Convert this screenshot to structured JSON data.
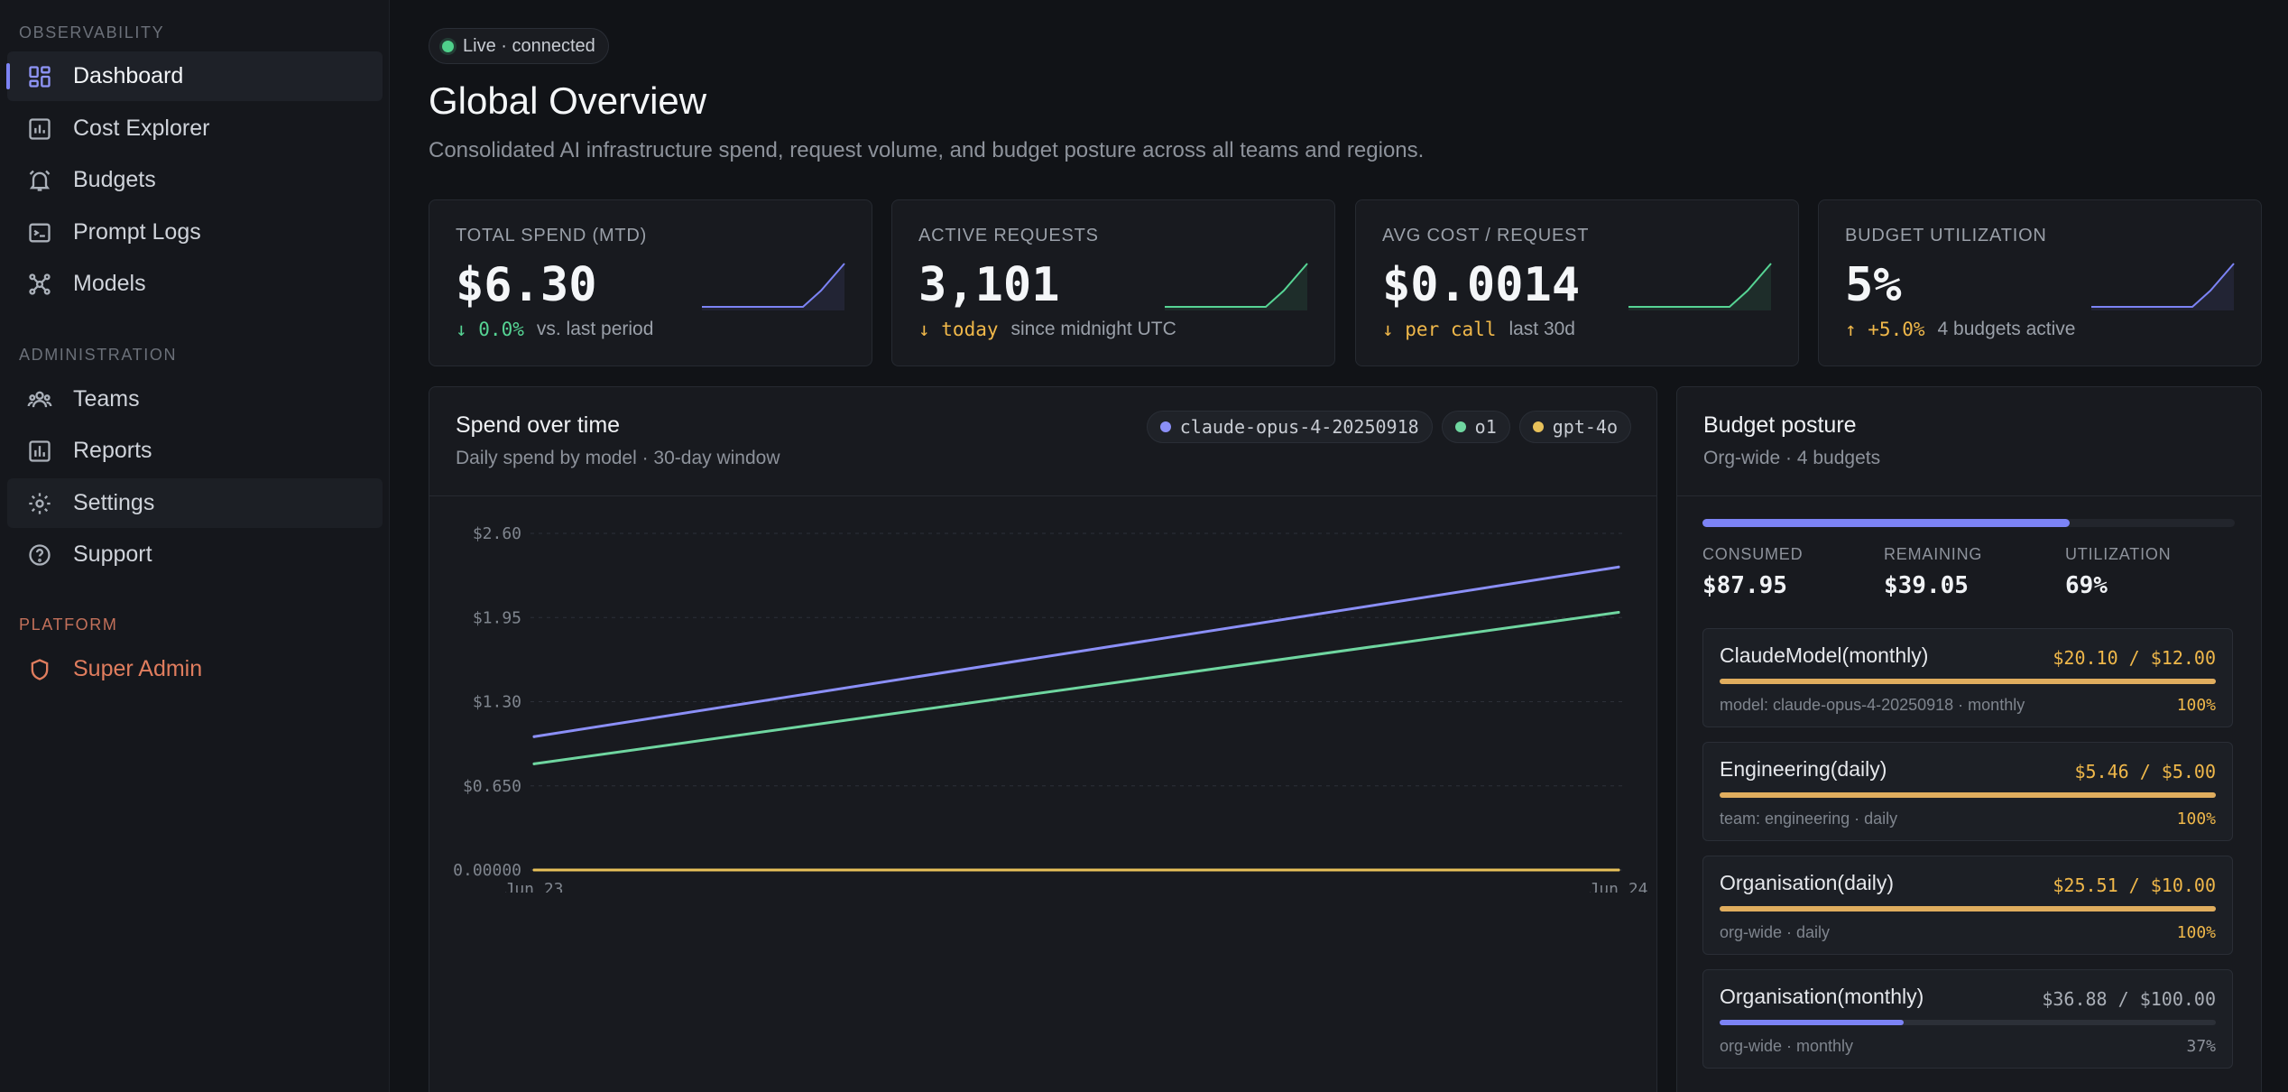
{
  "sidebar": {
    "sections": [
      {
        "label": "OBSERVABILITY"
      },
      {
        "label": "ADMINISTRATION"
      },
      {
        "label": "PLATFORM"
      }
    ],
    "items": [
      {
        "label": "Dashboard",
        "icon": "grid-icon",
        "active": true
      },
      {
        "label": "Cost Explorer",
        "icon": "bar-chart-icon"
      },
      {
        "label": "Budgets",
        "icon": "bell-alarm-icon"
      },
      {
        "label": "Prompt Logs",
        "icon": "terminal-icon"
      },
      {
        "label": "Models",
        "icon": "network-icon"
      },
      {
        "label": "Teams",
        "icon": "users-icon"
      },
      {
        "label": "Reports",
        "icon": "report-icon"
      },
      {
        "label": "Settings",
        "icon": "gear-icon"
      },
      {
        "label": "Support",
        "icon": "help-circle-icon"
      },
      {
        "label": "Super Admin",
        "icon": "shield-icon"
      }
    ]
  },
  "header": {
    "live_status": "Live · connected",
    "title": "Global Overview",
    "subtitle": "Consolidated AI infrastructure spend, request volume, and budget posture across all teams and regions."
  },
  "kpis": [
    {
      "label": "TOTAL SPEND (MTD)",
      "value": "$6.30",
      "change": "↓ 0.0%",
      "change_color": "green",
      "note": "vs. last period",
      "spark_color": "#7c83f5"
    },
    {
      "label": "ACTIVE REQUESTS",
      "value": "3,101",
      "change": "↓ today",
      "change_color": "amber",
      "note": "since midnight UTC",
      "spark_color": "#56d494"
    },
    {
      "label": "AVG COST / REQUEST",
      "value": "$0.0014",
      "change": "↓ per call",
      "change_color": "amber",
      "note": "last 30d",
      "spark_color": "#56d494"
    },
    {
      "label": "BUDGET UTILIZATION",
      "value": "5%",
      "change": "↑ +5.0%",
      "change_color": "amber",
      "note": "4 budgets active",
      "spark_color": "#7c83f5"
    }
  ],
  "spend_panel": {
    "title": "Spend over time",
    "subtitle": "Daily spend by model · 30-day window"
  },
  "chart_data": {
    "type": "line",
    "x": [
      "Jun 23",
      "Jun 24"
    ],
    "series": [
      {
        "name": "claude-opus-4-20250918",
        "color": "#8b8ff7",
        "values": [
          1.03,
          2.34
        ]
      },
      {
        "name": "o1",
        "color": "#6fd6a0",
        "values": [
          0.82,
          1.99
        ]
      },
      {
        "name": "gpt-4o",
        "color": "#e8c15a",
        "values": [
          0.0,
          0.0
        ]
      }
    ],
    "yticks": [
      "0.00000",
      "$0.650",
      "$1.30",
      "$1.95",
      "$2.60"
    ],
    "ylim": [
      0,
      2.6
    ],
    "grid": true,
    "legend_position": "top-right"
  },
  "budget_panel": {
    "title": "Budget posture",
    "subtitle": "Org-wide · 4 budgets",
    "overall_fraction": 0.69,
    "stats": [
      {
        "label": "CONSUMED",
        "value": "$87.95"
      },
      {
        "label": "REMAINING",
        "value": "$39.05"
      },
      {
        "label": "UTILIZATION",
        "value": "69%"
      }
    ],
    "items": [
      {
        "name": "ClaudeModel(monthly)",
        "amount": "$20.10 / $12.00",
        "meta": "model: claude-opus-4-20250918 · monthly",
        "pct": "100%",
        "fraction": 1.0,
        "over": true
      },
      {
        "name": "Engineering(daily)",
        "amount": "$5.46 / $5.00",
        "meta": "team: engineering · daily",
        "pct": "100%",
        "fraction": 1.0,
        "over": true
      },
      {
        "name": "Organisation(daily)",
        "amount": "$25.51 / $10.00",
        "meta": "org-wide · daily",
        "pct": "100%",
        "fraction": 1.0,
        "over": true
      },
      {
        "name": "Organisation(monthly)",
        "amount": "$36.88 / $100.00",
        "meta": "org-wide · monthly",
        "pct": "37%",
        "fraction": 0.37,
        "over": false
      }
    ]
  }
}
